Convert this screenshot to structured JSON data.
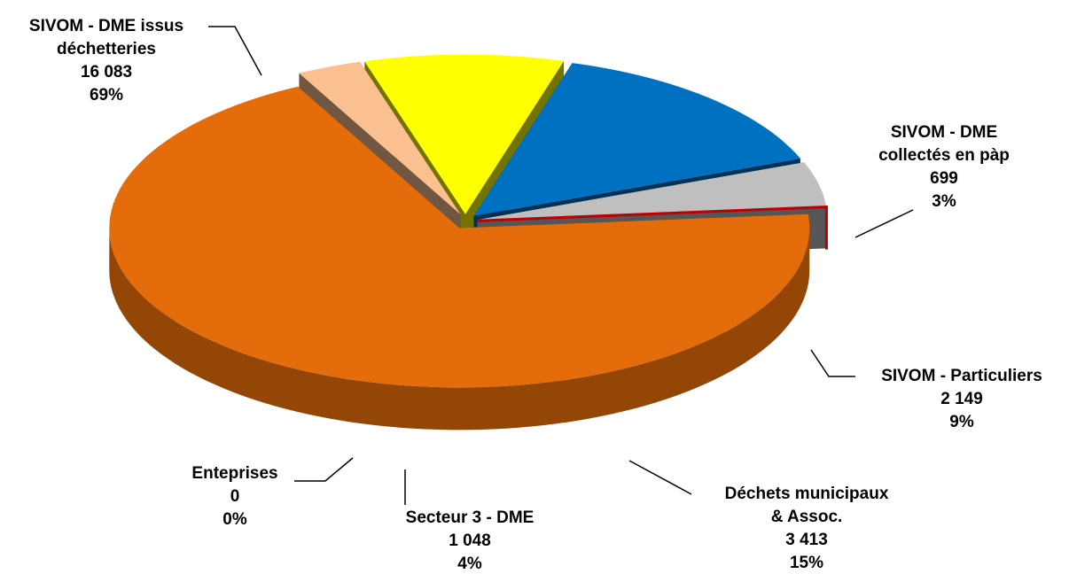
{
  "chart_data": {
    "type": "pie",
    "categories": [
      "SIVOM - DME issus\ndéchetteries",
      "SIVOM - DME\ncollectés en pàp",
      "SIVOM - Particuliers",
      "Déchets municipaux\n& Assoc.",
      "Secteur 3 - DME",
      "Enteprises"
    ],
    "values": [
      16083,
      699,
      2149,
      3413,
      1048,
      0
    ],
    "value_labels": [
      "16 083",
      "699",
      "2 149",
      "3 413",
      "1 048",
      "0"
    ],
    "shares": [
      69,
      3,
      9,
      15,
      4,
      0
    ],
    "share_labels": [
      "69%",
      "3%",
      "9%",
      "15%",
      "4%",
      "0%"
    ],
    "colors": [
      "#E46C0A",
      "#FAC090",
      "#FFFF00",
      "#0070C0",
      "#BFBFBF",
      "#C00000"
    ]
  }
}
